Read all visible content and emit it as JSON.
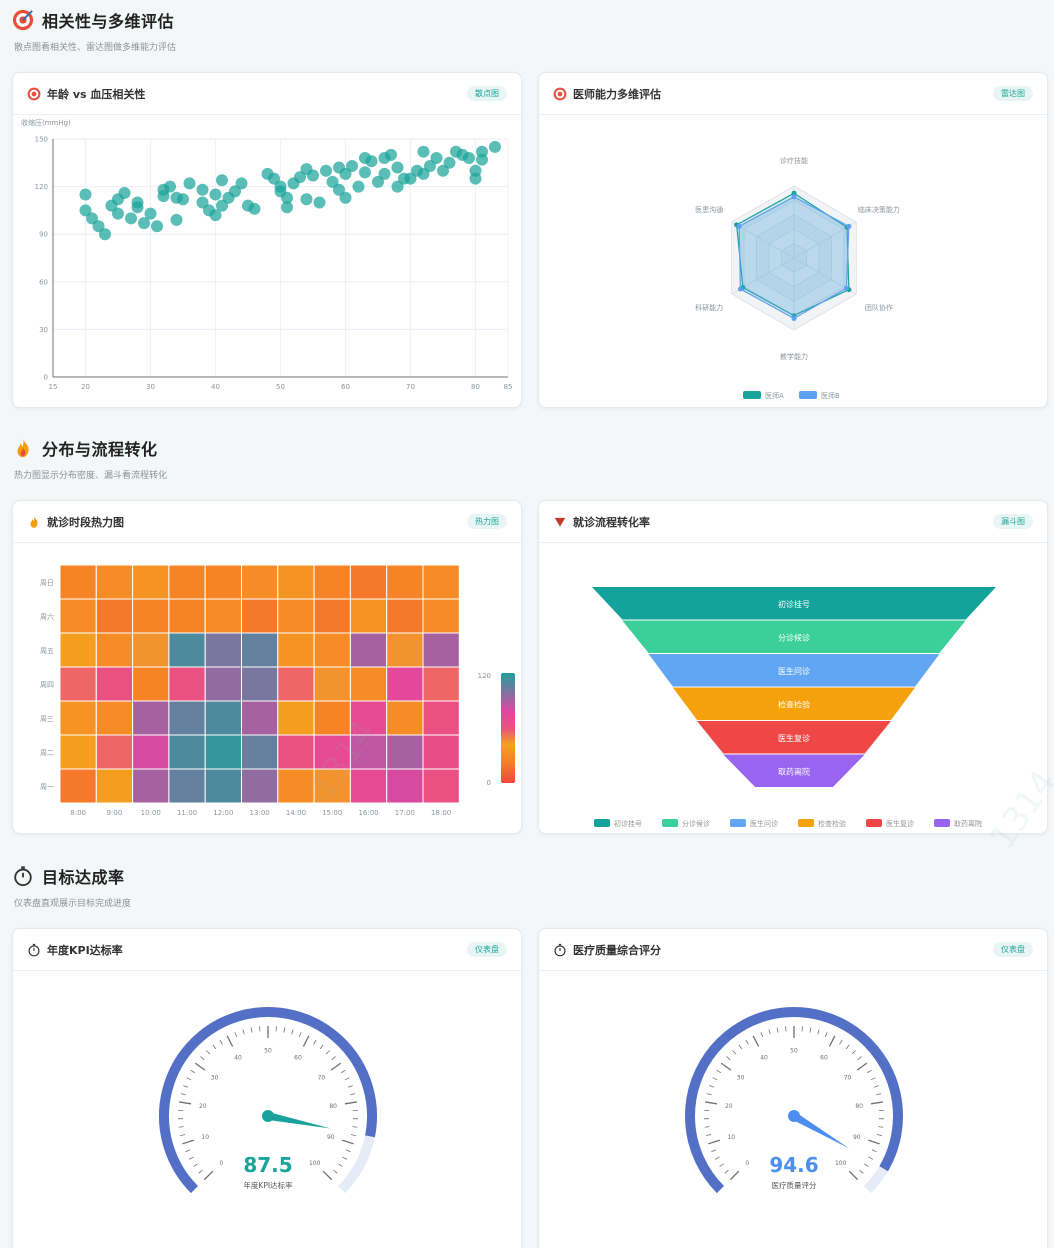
{
  "sections": [
    {
      "title": "相关性与多维评估",
      "subtitle": "散点图看相关性、雷达图做多维能力评估"
    },
    {
      "title": "分布与流程转化",
      "subtitle": "热力图显示分布密度、漏斗看流程转化"
    },
    {
      "title": "目标达成率",
      "subtitle": "仪表盘直观展示目标完成进度"
    }
  ],
  "cards": {
    "scatter": {
      "title": "年龄 vs 血压相关性",
      "badge": "散点图"
    },
    "radar": {
      "title": "医师能力多维评估",
      "badge": "雷达图"
    },
    "heatmap": {
      "title": "就诊时段热力图",
      "badge": "热力图"
    },
    "funnel": {
      "title": "就诊流程转化率",
      "badge": "漏斗图"
    },
    "gauge1": {
      "title": "年度KPI达标率",
      "badge": "仪表盘"
    },
    "gauge2": {
      "title": "医疗质量综合评分",
      "badge": "仪表盘"
    }
  },
  "watermark": "1314",
  "colors": {
    "accent": "#1aa39a",
    "gauge_blue": "#5470c6",
    "gauge_track": "#e6ebf8",
    "teal": "#1aa39a",
    "blue": "#5ea0f0"
  },
  "chart_data": [
    {
      "type": "scatter",
      "ylabel": "收缩压(mmHg)",
      "xlim": [
        15,
        85
      ],
      "ylim": [
        0,
        150
      ],
      "x_ticks": [
        15,
        20,
        30,
        40,
        50,
        60,
        70,
        80,
        85
      ],
      "y_ticks": [
        0,
        30,
        60,
        90,
        120,
        150
      ],
      "points": [
        [
          20,
          115
        ],
        [
          20,
          105
        ],
        [
          21,
          100
        ],
        [
          22,
          95
        ],
        [
          23,
          90
        ],
        [
          24,
          108
        ],
        [
          25,
          112
        ],
        [
          25,
          103
        ],
        [
          26,
          116
        ],
        [
          27,
          100
        ],
        [
          28,
          110
        ],
        [
          28,
          107
        ],
        [
          29,
          97
        ],
        [
          30,
          103
        ],
        [
          31,
          95
        ],
        [
          32,
          118
        ],
        [
          32,
          114
        ],
        [
          33,
          120
        ],
        [
          34,
          99
        ],
        [
          34,
          113
        ],
        [
          35,
          112
        ],
        [
          36,
          122
        ],
        [
          38,
          118
        ],
        [
          38,
          110
        ],
        [
          39,
          105
        ],
        [
          40,
          102
        ],
        [
          40,
          115
        ],
        [
          41,
          108
        ],
        [
          41,
          124
        ],
        [
          42,
          113
        ],
        [
          43,
          117
        ],
        [
          44,
          122
        ],
        [
          45,
          108
        ],
        [
          46,
          106
        ],
        [
          48,
          128
        ],
        [
          49,
          125
        ],
        [
          50,
          120
        ],
        [
          50,
          117
        ],
        [
          51,
          107
        ],
        [
          51,
          113
        ],
        [
          52,
          122
        ],
        [
          53,
          126
        ],
        [
          54,
          112
        ],
        [
          54,
          131
        ],
        [
          55,
          127
        ],
        [
          56,
          110
        ],
        [
          58,
          123
        ],
        [
          59,
          118
        ],
        [
          59,
          132
        ],
        [
          60,
          113
        ],
        [
          60,
          128
        ],
        [
          61,
          133
        ],
        [
          62,
          120
        ],
        [
          63,
          129
        ],
        [
          63,
          138
        ],
        [
          64,
          136
        ],
        [
          65,
          123
        ],
        [
          66,
          128
        ],
        [
          66,
          138
        ],
        [
          67,
          140
        ],
        [
          68,
          120
        ],
        [
          68,
          132
        ],
        [
          69,
          125
        ],
        [
          70,
          125
        ],
        [
          71,
          130
        ],
        [
          72,
          128
        ],
        [
          73,
          133
        ],
        [
          74,
          138
        ],
        [
          75,
          130
        ],
        [
          76,
          135
        ],
        [
          77,
          142
        ],
        [
          78,
          140
        ],
        [
          79,
          138
        ],
        [
          80,
          130
        ],
        [
          81,
          137
        ],
        [
          81,
          142
        ],
        [
          83,
          145
        ],
        [
          80,
          125
        ],
        [
          72,
          142
        ],
        [
          57,
          130
        ]
      ]
    },
    {
      "type": "radar",
      "indicators": [
        "诊疗技能",
        "临床决策能力",
        "团队协作",
        "教学能力",
        "科研能力",
        "医患沟通"
      ],
      "max": 100,
      "series": [
        {
          "name": "医师A",
          "values": [
            90,
            85,
            88,
            80,
            82,
            92
          ]
        },
        {
          "name": "医师B",
          "values": [
            85,
            88,
            84,
            84,
            86,
            88
          ]
        }
      ],
      "legend_position": "bottom"
    },
    {
      "type": "heatmap",
      "x": [
        "8:00",
        "9:00",
        "10:00",
        "11:00",
        "12:00",
        "13:00",
        "14:00",
        "15:00",
        "16:00",
        "17:00",
        "18:00"
      ],
      "y": [
        "周一",
        "周二",
        "周三",
        "周四",
        "周五",
        "周六",
        "周日"
      ],
      "min": 0,
      "max": 120,
      "visual_map_labels": [
        "120",
        "0"
      ],
      "values": [
        [
          20,
          40,
          90,
          105,
          110,
          95,
          30,
          45,
          70,
          80,
          60
        ],
        [
          40,
          55,
          80,
          110,
          115,
          105,
          60,
          70,
          85,
          90,
          65
        ],
        [
          35,
          30,
          90,
          105,
          110,
          90,
          40,
          25,
          70,
          30,
          60
        ],
        [
          55,
          60,
          25,
          60,
          95,
          100,
          55,
          45,
          30,
          75,
          55
        ],
        [
          40,
          30,
          45,
          110,
          100,
          105,
          35,
          30,
          90,
          45,
          90
        ],
        [
          30,
          20,
          25,
          25,
          30,
          20,
          30,
          20,
          35,
          20,
          30
        ],
        [
          25,
          30,
          35,
          25,
          25,
          30,
          35,
          25,
          20,
          25,
          30
        ]
      ]
    },
    {
      "type": "funnel",
      "stages": [
        "初诊挂号",
        "分诊候诊",
        "医生问诊",
        "检查检验",
        "医生复诊",
        "取药离院"
      ],
      "values": [
        100,
        85,
        72,
        60,
        48,
        35
      ],
      "colors": [
        "#13a39a",
        "#3bd09a",
        "#62a6f3",
        "#f5a10e",
        "#ee4746",
        "#9864f0"
      ],
      "legend_position": "bottom"
    },
    {
      "type": "gauge",
      "name": "年度KPI达标率",
      "value": 87.5,
      "min": 0,
      "max": 100,
      "ticks": [
        "0",
        "10",
        "20",
        "30",
        "40",
        "50",
        "60",
        "70",
        "80",
        "90",
        "100"
      ],
      "value_color": "#1aa39a"
    },
    {
      "type": "gauge",
      "name": "医疗质量评分",
      "value": 94.6,
      "min": 0,
      "max": 100,
      "ticks": [
        "0",
        "10",
        "20",
        "30",
        "40",
        "50",
        "60",
        "70",
        "80",
        "90",
        "100"
      ],
      "value_color": "#4d8ff0"
    }
  ]
}
